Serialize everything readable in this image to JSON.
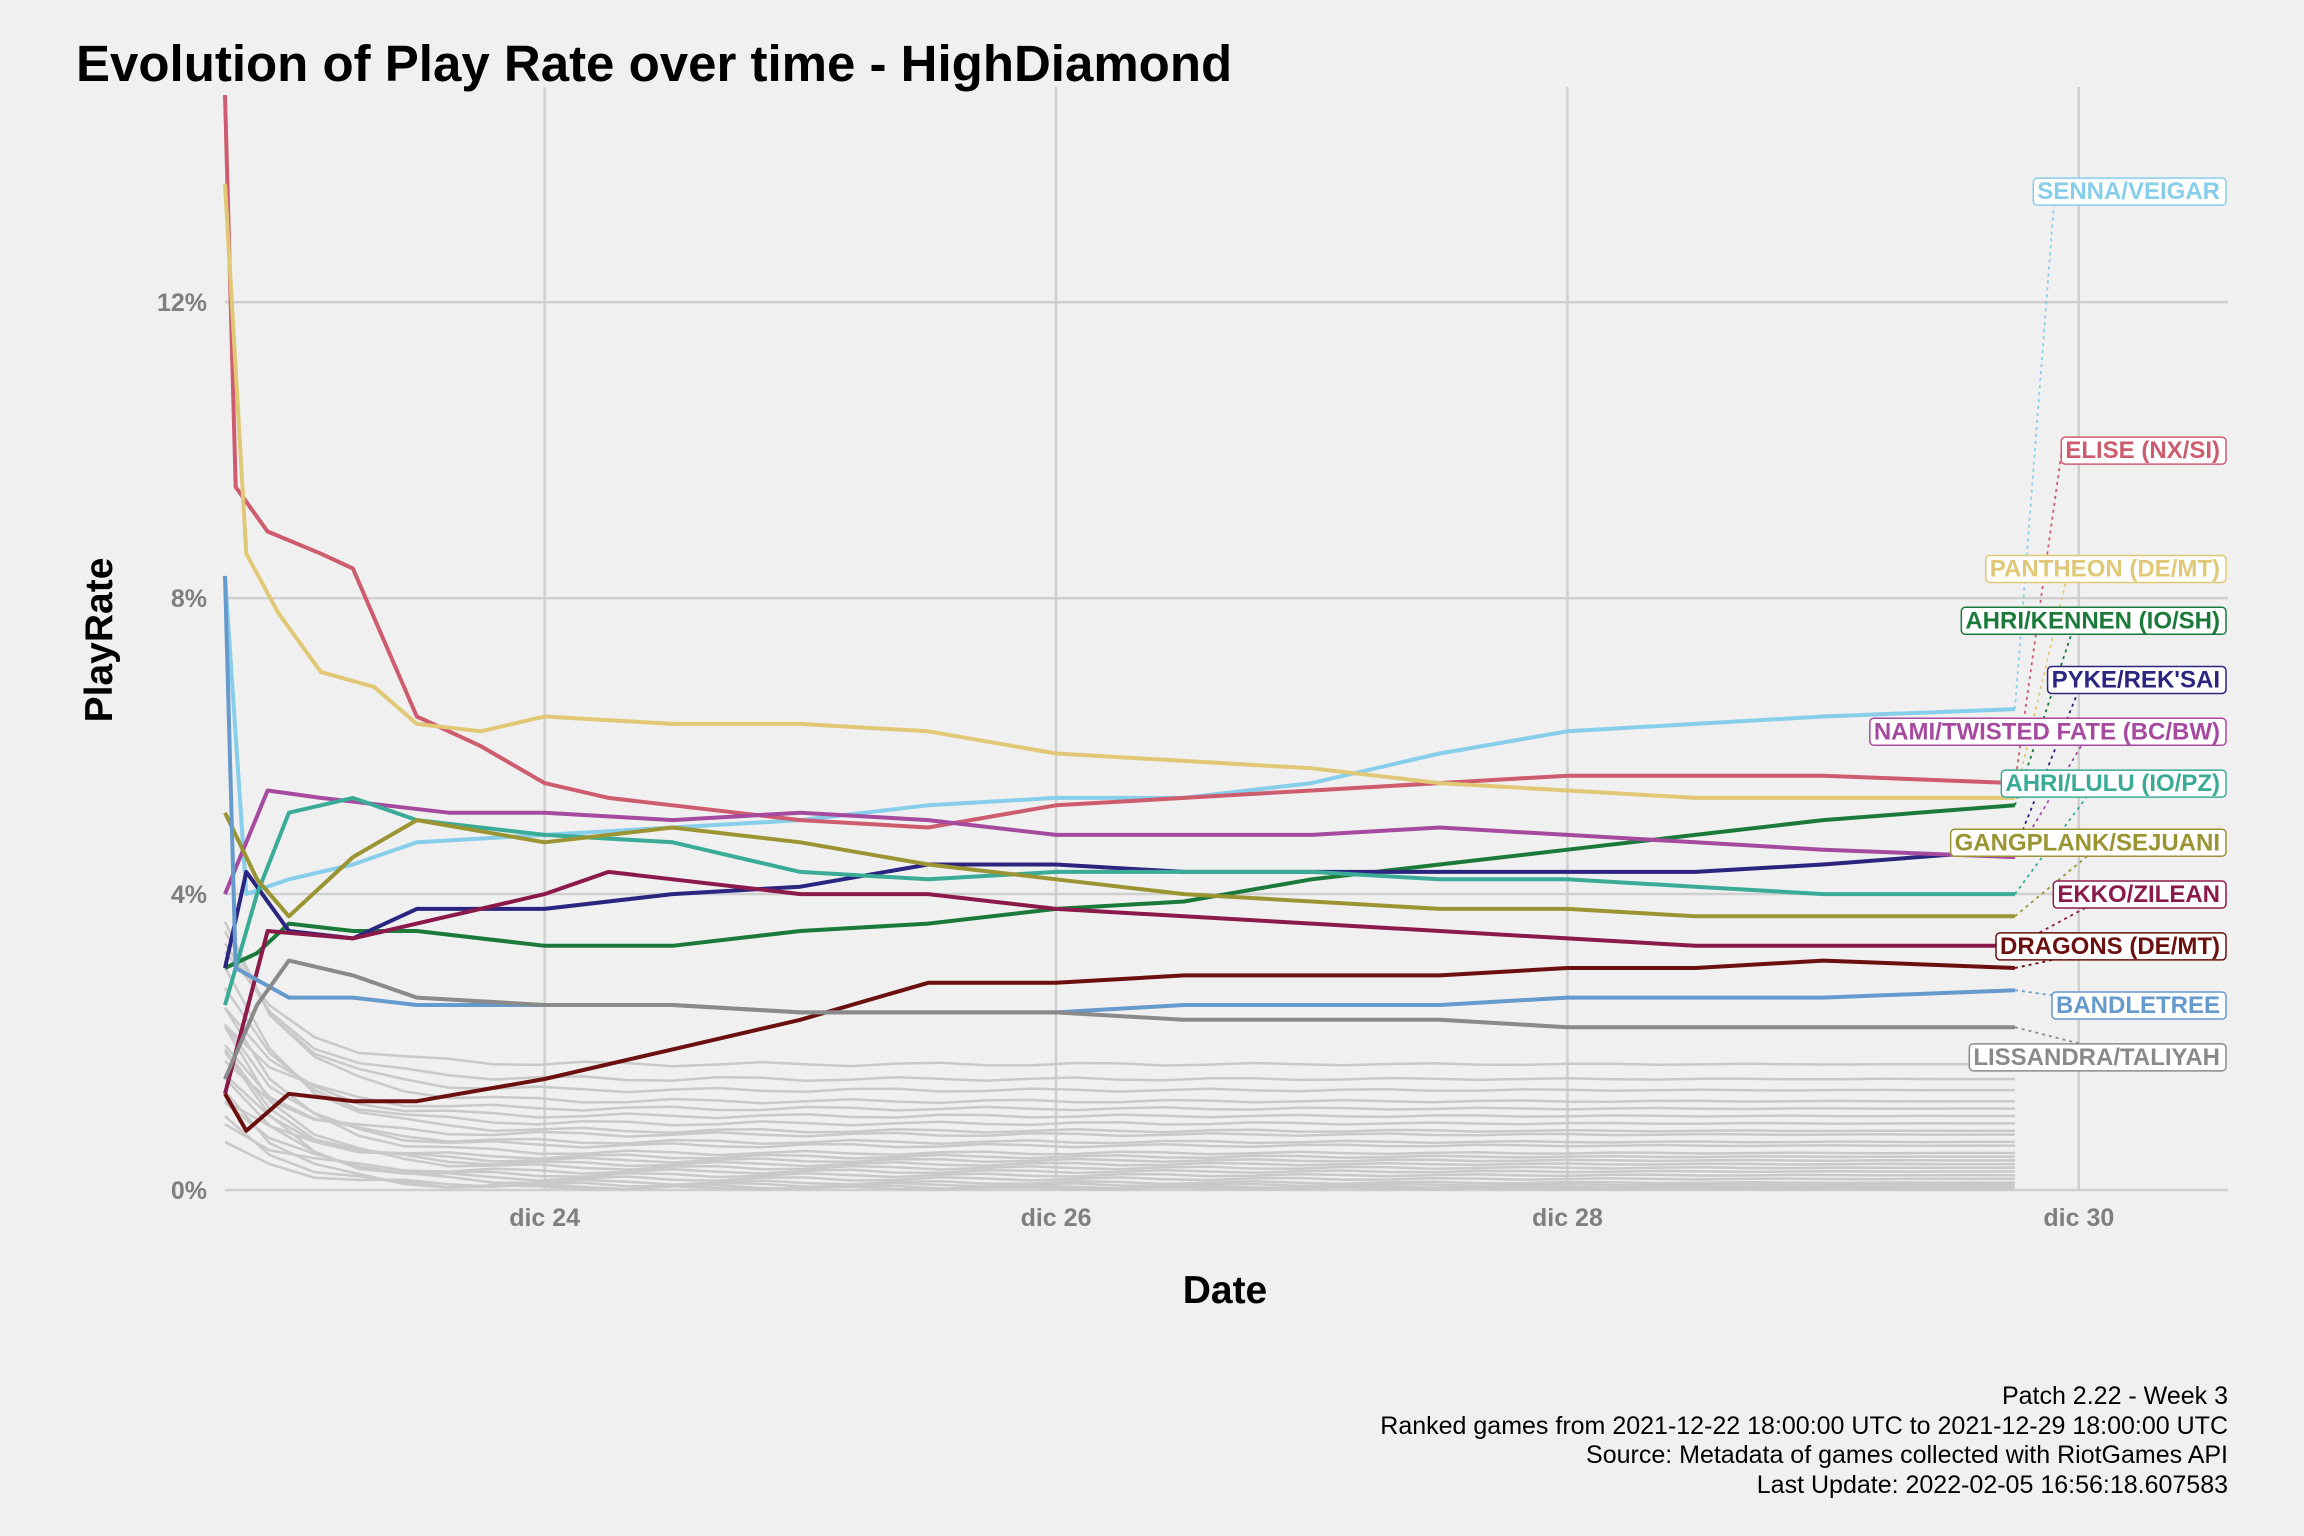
{
  "chart_data": {
    "type": "line",
    "title": "Evolution of Play Rate over time - HighDiamond",
    "xlabel": "Date",
    "ylabel": "PlayRate",
    "x_range": [
      "2021-12-22 18:00",
      "2021-12-30 14:00"
    ],
    "ylim": [
      0,
      14.8
    ],
    "x_ticks": [
      {
        "label": "dic 24",
        "date": "2021-12-24"
      },
      {
        "label": "dic 26",
        "date": "2021-12-26"
      },
      {
        "label": "dic 28",
        "date": "2021-12-28"
      },
      {
        "label": "dic 30",
        "date": "2021-12-30"
      }
    ],
    "y_ticks": [
      {
        "label": "0%",
        "value": 0
      },
      {
        "label": "4%",
        "value": 4
      },
      {
        "label": "8%",
        "value": 8
      },
      {
        "label": "12%",
        "value": 12
      }
    ],
    "grid": true,
    "legend": "none (direct labels at right edge)",
    "series": [
      {
        "name": "SENNA/VEIGAR",
        "color": "#87ceeb",
        "label_value": 13.5,
        "points": [
          [
            "2021-12-22 18:00",
            8.3
          ],
          [
            "2021-12-22 20:00",
            4.0
          ],
          [
            "2021-12-23 00:00",
            4.2
          ],
          [
            "2021-12-23 06:00",
            4.4
          ],
          [
            "2021-12-23 12:00",
            4.7
          ],
          [
            "2021-12-24 00:00",
            4.8
          ],
          [
            "2021-12-24 12:00",
            4.9
          ],
          [
            "2021-12-25 00:00",
            5.0
          ],
          [
            "2021-12-25 12:00",
            5.2
          ],
          [
            "2021-12-26 00:00",
            5.3
          ],
          [
            "2021-12-26 12:00",
            5.3
          ],
          [
            "2021-12-27 00:00",
            5.5
          ],
          [
            "2021-12-27 12:00",
            5.9
          ],
          [
            "2021-12-28 00:00",
            6.2
          ],
          [
            "2021-12-28 12:00",
            6.3
          ],
          [
            "2021-12-29 00:00",
            6.4
          ],
          [
            "2021-12-29 18:00",
            6.5
          ]
        ]
      },
      {
        "name": "ELISE (NX/SI)",
        "color": "#cd5c6e",
        "label_value": 10.0,
        "points": [
          [
            "2021-12-22 18:00",
            14.8
          ],
          [
            "2021-12-22 19:00",
            9.5
          ],
          [
            "2021-12-22 22:00",
            8.9
          ],
          [
            "2021-12-23 03:00",
            8.6
          ],
          [
            "2021-12-23 06:00",
            8.4
          ],
          [
            "2021-12-23 09:00",
            7.4
          ],
          [
            "2021-12-23 12:00",
            6.4
          ],
          [
            "2021-12-23 18:00",
            6.0
          ],
          [
            "2021-12-24 00:00",
            5.5
          ],
          [
            "2021-12-24 06:00",
            5.3
          ],
          [
            "2021-12-24 12:00",
            5.2
          ],
          [
            "2021-12-25 00:00",
            5.0
          ],
          [
            "2021-12-25 12:00",
            4.9
          ],
          [
            "2021-12-26 00:00",
            5.2
          ],
          [
            "2021-12-26 12:00",
            5.3
          ],
          [
            "2021-12-27 00:00",
            5.4
          ],
          [
            "2021-12-27 12:00",
            5.5
          ],
          [
            "2021-12-28 00:00",
            5.6
          ],
          [
            "2021-12-28 12:00",
            5.6
          ],
          [
            "2021-12-29 00:00",
            5.6
          ],
          [
            "2021-12-29 18:00",
            5.5
          ]
        ]
      },
      {
        "name": "PANTHEON (DE/MT)",
        "color": "#e0c877",
        "label_value": 8.4,
        "points": [
          [
            "2021-12-22 18:00",
            13.6
          ],
          [
            "2021-12-22 20:00",
            8.6
          ],
          [
            "2021-12-22 23:00",
            7.8
          ],
          [
            "2021-12-23 03:00",
            7.0
          ],
          [
            "2021-12-23 08:00",
            6.8
          ],
          [
            "2021-12-23 12:00",
            6.3
          ],
          [
            "2021-12-23 18:00",
            6.2
          ],
          [
            "2021-12-24 00:00",
            6.4
          ],
          [
            "2021-12-24 12:00",
            6.3
          ],
          [
            "2021-12-25 00:00",
            6.3
          ],
          [
            "2021-12-25 12:00",
            6.2
          ],
          [
            "2021-12-26 00:00",
            5.9
          ],
          [
            "2021-12-26 12:00",
            5.8
          ],
          [
            "2021-12-27 00:00",
            5.7
          ],
          [
            "2021-12-27 12:00",
            5.5
          ],
          [
            "2021-12-28 00:00",
            5.4
          ],
          [
            "2021-12-28 12:00",
            5.3
          ],
          [
            "2021-12-29 00:00",
            5.3
          ],
          [
            "2021-12-29 18:00",
            5.3
          ]
        ]
      },
      {
        "name": "AHRI/KENNEN (IO/SH)",
        "color": "#1b7a3a",
        "label_value": 7.7,
        "points": [
          [
            "2021-12-22 18:00",
            3.0
          ],
          [
            "2021-12-22 21:00",
            3.2
          ],
          [
            "2021-12-23 00:00",
            3.6
          ],
          [
            "2021-12-23 06:00",
            3.5
          ],
          [
            "2021-12-23 12:00",
            3.5
          ],
          [
            "2021-12-24 00:00",
            3.3
          ],
          [
            "2021-12-24 12:00",
            3.3
          ],
          [
            "2021-12-25 00:00",
            3.5
          ],
          [
            "2021-12-25 12:00",
            3.6
          ],
          [
            "2021-12-26 00:00",
            3.8
          ],
          [
            "2021-12-26 12:00",
            3.9
          ],
          [
            "2021-12-27 00:00",
            4.2
          ],
          [
            "2021-12-27 12:00",
            4.4
          ],
          [
            "2021-12-28 00:00",
            4.6
          ],
          [
            "2021-12-28 12:00",
            4.8
          ],
          [
            "2021-12-29 00:00",
            5.0
          ],
          [
            "2021-12-29 18:00",
            5.2
          ]
        ]
      },
      {
        "name": "PYKE/REK'SAI",
        "color": "#2b2580",
        "label_value": 6.9,
        "points": [
          [
            "2021-12-22 18:00",
            3.0
          ],
          [
            "2021-12-22 20:00",
            4.3
          ],
          [
            "2021-12-23 00:00",
            3.5
          ],
          [
            "2021-12-23 06:00",
            3.4
          ],
          [
            "2021-12-23 12:00",
            3.8
          ],
          [
            "2021-12-24 00:00",
            3.8
          ],
          [
            "2021-12-24 12:00",
            4.0
          ],
          [
            "2021-12-25 00:00",
            4.1
          ],
          [
            "2021-12-25 12:00",
            4.4
          ],
          [
            "2021-12-26 00:00",
            4.4
          ],
          [
            "2021-12-26 12:00",
            4.3
          ],
          [
            "2021-12-27 00:00",
            4.3
          ],
          [
            "2021-12-27 12:00",
            4.3
          ],
          [
            "2021-12-28 00:00",
            4.3
          ],
          [
            "2021-12-28 12:00",
            4.3
          ],
          [
            "2021-12-29 00:00",
            4.4
          ],
          [
            "2021-12-29 18:00",
            4.6
          ]
        ]
      },
      {
        "name": "NAMI/TWISTED FATE (BC/BW)",
        "color": "#a64aa0",
        "label_value": 6.2,
        "points": [
          [
            "2021-12-22 18:00",
            4.0
          ],
          [
            "2021-12-22 22:00",
            5.4
          ],
          [
            "2021-12-23 03:00",
            5.3
          ],
          [
            "2021-12-23 09:00",
            5.2
          ],
          [
            "2021-12-23 15:00",
            5.1
          ],
          [
            "2021-12-24 00:00",
            5.1
          ],
          [
            "2021-12-24 12:00",
            5.0
          ],
          [
            "2021-12-25 00:00",
            5.1
          ],
          [
            "2021-12-25 12:00",
            5.0
          ],
          [
            "2021-12-26 00:00",
            4.8
          ],
          [
            "2021-12-26 12:00",
            4.8
          ],
          [
            "2021-12-27 00:00",
            4.8
          ],
          [
            "2021-12-27 12:00",
            4.9
          ],
          [
            "2021-12-28 00:00",
            4.8
          ],
          [
            "2021-12-28 12:00",
            4.7
          ],
          [
            "2021-12-29 00:00",
            4.6
          ],
          [
            "2021-12-29 18:00",
            4.5
          ]
        ]
      },
      {
        "name": "AHRI/LULU (IO/PZ)",
        "color": "#3aab97",
        "label_value": 5.5,
        "points": [
          [
            "2021-12-22 18:00",
            2.5
          ],
          [
            "2021-12-22 21:00",
            4.0
          ],
          [
            "2021-12-23 00:00",
            5.1
          ],
          [
            "2021-12-23 06:00",
            5.3
          ],
          [
            "2021-12-23 12:00",
            5.0
          ],
          [
            "2021-12-24 00:00",
            4.8
          ],
          [
            "2021-12-24 12:00",
            4.7
          ],
          [
            "2021-12-25 00:00",
            4.3
          ],
          [
            "2021-12-25 12:00",
            4.2
          ],
          [
            "2021-12-26 00:00",
            4.3
          ],
          [
            "2021-12-26 12:00",
            4.3
          ],
          [
            "2021-12-27 00:00",
            4.3
          ],
          [
            "2021-12-27 12:00",
            4.2
          ],
          [
            "2021-12-28 00:00",
            4.2
          ],
          [
            "2021-12-28 12:00",
            4.1
          ],
          [
            "2021-12-29 00:00",
            4.0
          ],
          [
            "2021-12-29 18:00",
            4.0
          ]
        ]
      },
      {
        "name": "GANGPLANK/SEJUANI",
        "color": "#9a9432",
        "label_value": 4.7,
        "points": [
          [
            "2021-12-22 18:00",
            5.1
          ],
          [
            "2021-12-22 21:00",
            4.2
          ],
          [
            "2021-12-23 00:00",
            3.7
          ],
          [
            "2021-12-23 06:00",
            4.5
          ],
          [
            "2021-12-23 12:00",
            5.0
          ],
          [
            "2021-12-24 00:00",
            4.7
          ],
          [
            "2021-12-24 12:00",
            4.9
          ],
          [
            "2021-12-25 00:00",
            4.7
          ],
          [
            "2021-12-25 12:00",
            4.4
          ],
          [
            "2021-12-26 00:00",
            4.2
          ],
          [
            "2021-12-26 12:00",
            4.0
          ],
          [
            "2021-12-27 00:00",
            3.9
          ],
          [
            "2021-12-27 12:00",
            3.8
          ],
          [
            "2021-12-28 00:00",
            3.8
          ],
          [
            "2021-12-28 12:00",
            3.7
          ],
          [
            "2021-12-29 00:00",
            3.7
          ],
          [
            "2021-12-29 18:00",
            3.7
          ]
        ]
      },
      {
        "name": "EKKO/ZILEAN",
        "color": "#8b1a4a",
        "label_value": 4.0,
        "points": [
          [
            "2021-12-22 18:00",
            1.3
          ],
          [
            "2021-12-22 22:00",
            3.5
          ],
          [
            "2021-12-23 06:00",
            3.4
          ],
          [
            "2021-12-23 12:00",
            3.6
          ],
          [
            "2021-12-24 00:00",
            4.0
          ],
          [
            "2021-12-24 06:00",
            4.3
          ],
          [
            "2021-12-24 12:00",
            4.2
          ],
          [
            "2021-12-25 00:00",
            4.0
          ],
          [
            "2021-12-25 12:00",
            4.0
          ],
          [
            "2021-12-26 00:00",
            3.8
          ],
          [
            "2021-12-26 12:00",
            3.7
          ],
          [
            "2021-12-27 00:00",
            3.6
          ],
          [
            "2021-12-27 12:00",
            3.5
          ],
          [
            "2021-12-28 00:00",
            3.4
          ],
          [
            "2021-12-28 12:00",
            3.3
          ],
          [
            "2021-12-29 00:00",
            3.3
          ],
          [
            "2021-12-29 18:00",
            3.3
          ]
        ]
      },
      {
        "name": "DRAGONS (DE/MT)",
        "color": "#6b0f0f",
        "label_value": 3.3,
        "points": [
          [
            "2021-12-22 18:00",
            1.3
          ],
          [
            "2021-12-22 20:00",
            0.8
          ],
          [
            "2021-12-23 00:00",
            1.3
          ],
          [
            "2021-12-23 06:00",
            1.2
          ],
          [
            "2021-12-23 12:00",
            1.2
          ],
          [
            "2021-12-24 00:00",
            1.5
          ],
          [
            "2021-12-24 12:00",
            1.9
          ],
          [
            "2021-12-25 00:00",
            2.3
          ],
          [
            "2021-12-25 12:00",
            2.8
          ],
          [
            "2021-12-26 00:00",
            2.8
          ],
          [
            "2021-12-26 12:00",
            2.9
          ],
          [
            "2021-12-27 00:00",
            2.9
          ],
          [
            "2021-12-27 12:00",
            2.9
          ],
          [
            "2021-12-28 00:00",
            3.0
          ],
          [
            "2021-12-28 12:00",
            3.0
          ],
          [
            "2021-12-29 00:00",
            3.1
          ],
          [
            "2021-12-29 18:00",
            3.0
          ]
        ]
      },
      {
        "name": "BANDLETREE",
        "color": "#6699cc",
        "label_value": 2.5,
        "points": [
          [
            "2021-12-22 18:00",
            8.3
          ],
          [
            "2021-12-22 19:00",
            3.0
          ],
          [
            "2021-12-23 00:00",
            2.6
          ],
          [
            "2021-12-23 06:00",
            2.6
          ],
          [
            "2021-12-23 12:00",
            2.5
          ],
          [
            "2021-12-24 00:00",
            2.5
          ],
          [
            "2021-12-24 12:00",
            2.5
          ],
          [
            "2021-12-25 00:00",
            2.4
          ],
          [
            "2021-12-25 12:00",
            2.4
          ],
          [
            "2021-12-26 00:00",
            2.4
          ],
          [
            "2021-12-26 12:00",
            2.5
          ],
          [
            "2021-12-27 00:00",
            2.5
          ],
          [
            "2021-12-27 12:00",
            2.5
          ],
          [
            "2021-12-28 00:00",
            2.6
          ],
          [
            "2021-12-28 12:00",
            2.6
          ],
          [
            "2021-12-29 00:00",
            2.6
          ],
          [
            "2021-12-29 18:00",
            2.7
          ]
        ]
      },
      {
        "name": "LISSANDRA/TALIYAH",
        "color": "#8a8a8a",
        "label_value": 1.8,
        "points": [
          [
            "2021-12-22 18:00",
            1.5
          ],
          [
            "2021-12-22 21:00",
            2.5
          ],
          [
            "2021-12-23 00:00",
            3.1
          ],
          [
            "2021-12-23 06:00",
            2.9
          ],
          [
            "2021-12-23 12:00",
            2.6
          ],
          [
            "2021-12-24 00:00",
            2.5
          ],
          [
            "2021-12-24 12:00",
            2.5
          ],
          [
            "2021-12-25 00:00",
            2.4
          ],
          [
            "2021-12-25 12:00",
            2.4
          ],
          [
            "2021-12-26 00:00",
            2.4
          ],
          [
            "2021-12-26 12:00",
            2.3
          ],
          [
            "2021-12-27 00:00",
            2.3
          ],
          [
            "2021-12-27 12:00",
            2.3
          ],
          [
            "2021-12-28 00:00",
            2.2
          ],
          [
            "2021-12-28 12:00",
            2.2
          ],
          [
            "2021-12-29 00:00",
            2.2
          ],
          [
            "2021-12-29 18:00",
            2.2
          ]
        ]
      }
    ],
    "background_series": {
      "color": "#c9c9c9",
      "final_values": [
        1.7,
        1.5,
        1.35,
        1.2,
        1.1,
        1.0,
        0.9,
        0.8,
        0.75,
        0.65,
        0.6,
        0.5,
        0.45,
        0.4,
        0.35,
        0.3,
        0.25,
        0.2,
        0.15,
        0.1,
        0.07,
        0.04,
        0.02
      ]
    }
  },
  "caption": {
    "line1": "Patch 2.22 - Week 3",
    "line2": "Ranked games from 2021-12-22 18:00:00 UTC to 2021-12-29 18:00:00 UTC",
    "line3": "Source: Metadata of games collected with RiotGames API",
    "line4": "Last Update: 2022-02-05 16:56:18.607583"
  }
}
